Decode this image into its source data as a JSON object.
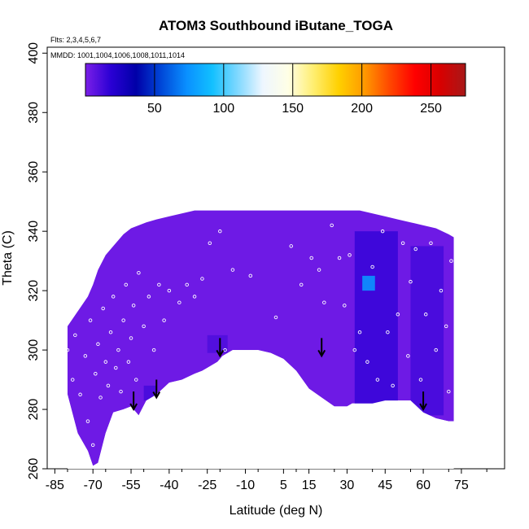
{
  "chart_data": {
    "type": "heatmap",
    "title": "ATOM3 Southbound iButane_TOGA",
    "flights_label": "Flts: 2,3,4,5,6,7",
    "mmdd_label": "MMDD: 1001,1004,1006,1008,1011,1014",
    "xlabel": "Latitude (deg N)",
    "ylabel": "Theta (C)",
    "xlim": [
      -88,
      92
    ],
    "ylim": [
      260,
      402
    ],
    "x_ticks": [
      -85,
      -70,
      -55,
      -40,
      -25,
      -10,
      5,
      15,
      30,
      45,
      60,
      75
    ],
    "y_ticks": [
      260,
      280,
      300,
      320,
      340,
      360,
      380,
      400
    ],
    "colorbar": {
      "range": [
        0,
        275
      ],
      "ticks": [
        50,
        100,
        150,
        200,
        250
      ],
      "colors": [
        "#7b1fe8",
        "#2a00d4",
        "#0000a8",
        "#0048d8",
        "#0a90ff",
        "#12c0ff",
        "#7fd8ff",
        "#eef6ff",
        "#ffffe6",
        "#ffee70",
        "#ffd000",
        "#ff9a00",
        "#ff4800",
        "#ff0000",
        "#d80000",
        "#a81818"
      ]
    },
    "curtain": {
      "lat": [
        -80,
        -76,
        -72,
        -70,
        -68,
        -65,
        -62,
        -58,
        -55,
        -52,
        -49,
        -45,
        -40,
        -35,
        -30,
        -27,
        -25,
        -21,
        -19,
        -15,
        -10,
        -5,
        0,
        5,
        10,
        15,
        20,
        25,
        30,
        32,
        35,
        40,
        45,
        50,
        55,
        60,
        65,
        70,
        72
      ],
      "top_theta": [
        308,
        313,
        318,
        322,
        327,
        332,
        335,
        339,
        341,
        342,
        343,
        344,
        345,
        346,
        347,
        347,
        347,
        347,
        347,
        347,
        347,
        347,
        347,
        347,
        347,
        347,
        347,
        347,
        347,
        347,
        347,
        346,
        345,
        344,
        343,
        342,
        341,
        339,
        338
      ],
      "bottom_theta": [
        285,
        272,
        266,
        261,
        262,
        272,
        279,
        280,
        281,
        278,
        283,
        285,
        289,
        290,
        292,
        293,
        294,
        296,
        298,
        300,
        300,
        300,
        299,
        297,
        293,
        287,
        284,
        281,
        281,
        282,
        282,
        282,
        283,
        283,
        283,
        279,
        277,
        276,
        276
      ]
    },
    "high_concentration_regions": [
      {
        "lat": [
          33,
          50
        ],
        "theta": [
          280,
          340
        ],
        "value": 15
      },
      {
        "lat": [
          55,
          68
        ],
        "theta": [
          278,
          335
        ],
        "value": 12
      },
      {
        "lat": [
          -25,
          -17
        ],
        "theta": [
          299,
          305
        ],
        "value": 10
      },
      {
        "lat": [
          -50,
          -45
        ],
        "theta": [
          283,
          288
        ],
        "value": 12
      },
      {
        "lat": [
          36,
          41
        ],
        "theta": [
          320,
          325
        ],
        "value": 75
      }
    ],
    "arrow_latitudes": [
      -54,
      -45,
      -20,
      20,
      60
    ],
    "arrow_thetas": [
      280,
      284,
      298,
      298,
      280
    ],
    "sample_points": [
      {
        "lat": -80,
        "theta": 300
      },
      {
        "lat": -78,
        "theta": 290
      },
      {
        "lat": -77,
        "theta": 305
      },
      {
        "lat": -75,
        "theta": 285
      },
      {
        "lat": -73,
        "theta": 298
      },
      {
        "lat": -72,
        "theta": 276
      },
      {
        "lat": -71,
        "theta": 310
      },
      {
        "lat": -70,
        "theta": 268
      },
      {
        "lat": -69,
        "theta": 292
      },
      {
        "lat": -68,
        "theta": 302
      },
      {
        "lat": -67,
        "theta": 284
      },
      {
        "lat": -66,
        "theta": 314
      },
      {
        "lat": -65,
        "theta": 296
      },
      {
        "lat": -64,
        "theta": 288
      },
      {
        "lat": -63,
        "theta": 306
      },
      {
        "lat": -62,
        "theta": 318
      },
      {
        "lat": -61,
        "theta": 294
      },
      {
        "lat": -60,
        "theta": 300
      },
      {
        "lat": -59,
        "theta": 286
      },
      {
        "lat": -58,
        "theta": 310
      },
      {
        "lat": -57,
        "theta": 322
      },
      {
        "lat": -56,
        "theta": 296
      },
      {
        "lat": -55,
        "theta": 304
      },
      {
        "lat": -54,
        "theta": 315
      },
      {
        "lat": -53,
        "theta": 290
      },
      {
        "lat": -52,
        "theta": 326
      },
      {
        "lat": -50,
        "theta": 308
      },
      {
        "lat": -48,
        "theta": 318
      },
      {
        "lat": -46,
        "theta": 300
      },
      {
        "lat": -44,
        "theta": 322
      },
      {
        "lat": -42,
        "theta": 310
      },
      {
        "lat": -40,
        "theta": 320
      },
      {
        "lat": -36,
        "theta": 316
      },
      {
        "lat": -33,
        "theta": 322
      },
      {
        "lat": -30,
        "theta": 318
      },
      {
        "lat": -27,
        "theta": 324
      },
      {
        "lat": -24,
        "theta": 336
      },
      {
        "lat": -20,
        "theta": 340
      },
      {
        "lat": -18,
        "theta": 300
      },
      {
        "lat": -15,
        "theta": 327
      },
      {
        "lat": -8,
        "theta": 325
      },
      {
        "lat": 2,
        "theta": 311
      },
      {
        "lat": 8,
        "theta": 335
      },
      {
        "lat": 12,
        "theta": 322
      },
      {
        "lat": 16,
        "theta": 331
      },
      {
        "lat": 19,
        "theta": 327
      },
      {
        "lat": 21,
        "theta": 316
      },
      {
        "lat": 24,
        "theta": 342
      },
      {
        "lat": 27,
        "theta": 331
      },
      {
        "lat": 29,
        "theta": 315
      },
      {
        "lat": 31,
        "theta": 332
      },
      {
        "lat": 33,
        "theta": 300
      },
      {
        "lat": 35,
        "theta": 306
      },
      {
        "lat": 38,
        "theta": 296
      },
      {
        "lat": 40,
        "theta": 328
      },
      {
        "lat": 42,
        "theta": 290
      },
      {
        "lat": 44,
        "theta": 340
      },
      {
        "lat": 46,
        "theta": 306
      },
      {
        "lat": 48,
        "theta": 288
      },
      {
        "lat": 50,
        "theta": 312
      },
      {
        "lat": 52,
        "theta": 336
      },
      {
        "lat": 54,
        "theta": 298
      },
      {
        "lat": 55,
        "theta": 323
      },
      {
        "lat": 57,
        "theta": 334
      },
      {
        "lat": 59,
        "theta": 290
      },
      {
        "lat": 61,
        "theta": 312
      },
      {
        "lat": 63,
        "theta": 336
      },
      {
        "lat": 65,
        "theta": 300
      },
      {
        "lat": 67,
        "theta": 320
      },
      {
        "lat": 69,
        "theta": 308
      },
      {
        "lat": 70,
        "theta": 286
      },
      {
        "lat": 71,
        "theta": 330
      }
    ]
  }
}
